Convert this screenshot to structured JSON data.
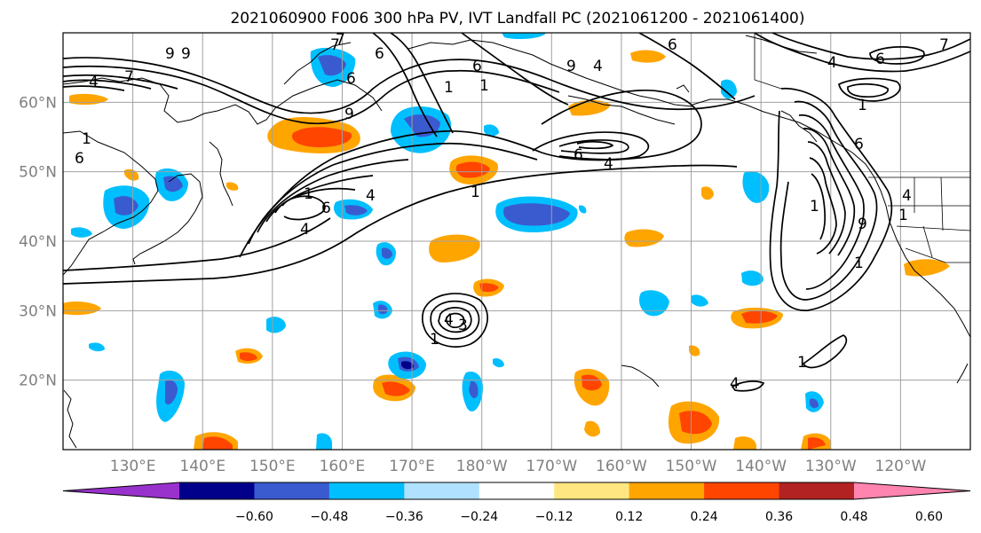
{
  "title": "2021060900 F006 300 hPa PV, IVT Landfall PC (2021061200 - 2021061400)",
  "lat_labels": [
    "60°N",
    "50°N",
    "40°N",
    "30°N",
    "20°N"
  ],
  "lat_values": [
    60,
    50,
    40,
    30,
    20
  ],
  "lon_labels": [
    "130°E",
    "140°E",
    "150°E",
    "160°E",
    "170°E",
    "180°W",
    "170°W",
    "160°W",
    "150°W",
    "140°W",
    "130°W",
    "120°W"
  ],
  "lon_values": [
    130,
    140,
    150,
    160,
    170,
    180,
    190,
    200,
    210,
    220,
    230,
    240
  ],
  "extent": {
    "lon_min": 120,
    "lon_max": 250,
    "lat_min": 10,
    "lat_max": 70
  },
  "colorbar": {
    "ticks": [
      "−0.60",
      "−0.48",
      "−0.36",
      "−0.24",
      "−0.12",
      "0.12",
      "0.24",
      "0.36",
      "0.48",
      "0.60"
    ],
    "colors": [
      "#9932cc",
      "#00008b",
      "#3a5bd0",
      "#00bfff",
      "#b0e2ff",
      "#ffffff",
      "#ffe680",
      "#ffa500",
      "#ff4500",
      "#b22222",
      "#ff85b0"
    ],
    "extend": "both"
  },
  "contour_labels": [
    "9",
    "7",
    "4",
    "9",
    "7",
    "6",
    "6",
    "6",
    "9",
    "4",
    "1",
    "1",
    "6",
    "1",
    "6",
    "4",
    "1",
    "4",
    "6",
    "9",
    "1",
    "6",
    "4",
    "4",
    "1",
    "7",
    "6",
    "1",
    "6",
    "4",
    "9",
    "1",
    "1",
    "3",
    "4",
    "1",
    "4",
    "1",
    "7"
  ]
}
